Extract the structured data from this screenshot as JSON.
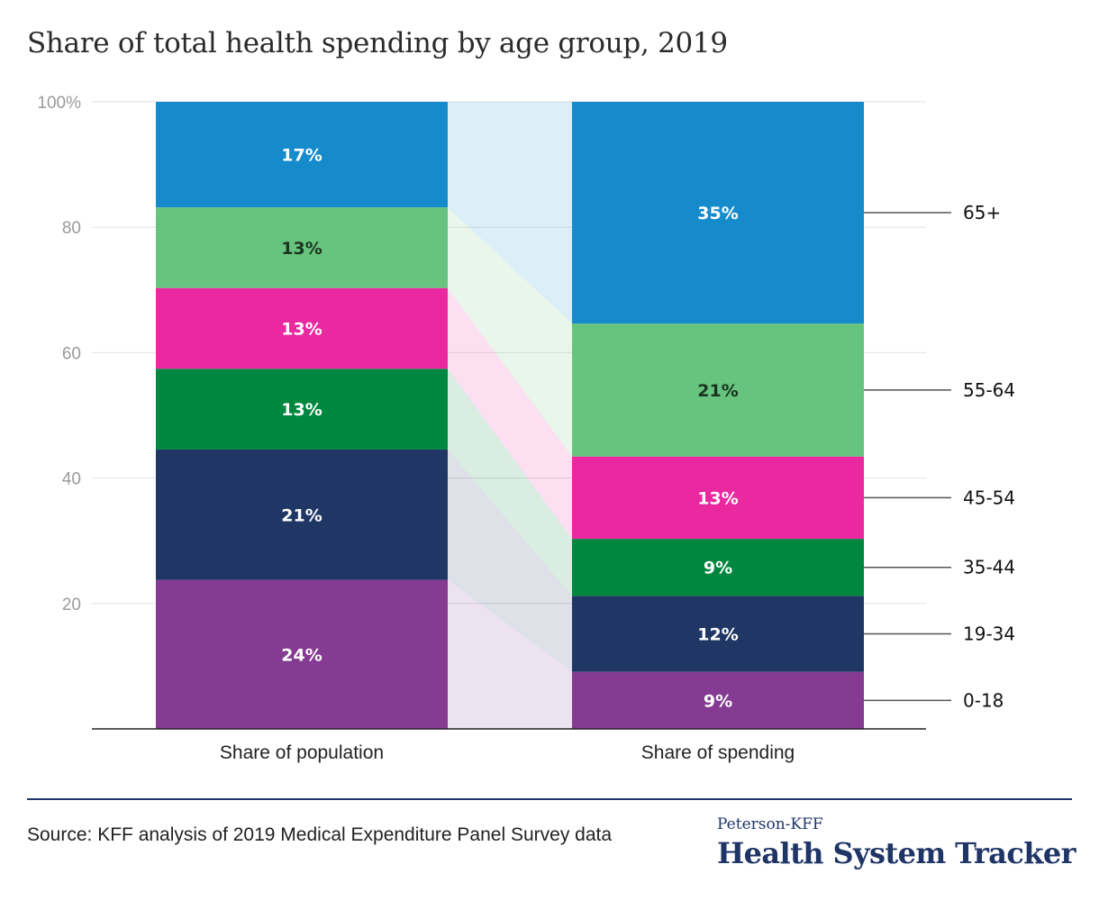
{
  "title": "Share of total health spending by age group, 2019",
  "chart_data": {
    "type": "bar",
    "stacked": true,
    "categories": [
      "Share of population",
      "Share of spending"
    ],
    "series": [
      {
        "name": "0-18",
        "values": [
          24,
          9
        ],
        "color": "#843b91",
        "labels": [
          "24%",
          "9%"
        ]
      },
      {
        "name": "19-34",
        "values": [
          21,
          12
        ],
        "color": "#203766",
        "labels": [
          "21%",
          "12%"
        ]
      },
      {
        "name": "35-44",
        "values": [
          13,
          9
        ],
        "color": "#00873f",
        "labels": [
          "13%",
          "9%"
        ]
      },
      {
        "name": "45-54",
        "values": [
          13,
          13
        ],
        "color": "#ea28a0",
        "labels": [
          "13%",
          "13%"
        ]
      },
      {
        "name": "55-64",
        "values": [
          13,
          21
        ],
        "color": "#66c47e",
        "labels": [
          "13%",
          "21%"
        ]
      },
      {
        "name": "65+",
        "values": [
          17,
          35
        ],
        "color": "#168bcb",
        "labels": [
          "17%",
          "35%"
        ]
      }
    ],
    "yticks": [
      "20",
      "40",
      "60",
      "80",
      "100%"
    ],
    "ytick_values": [
      20,
      40,
      60,
      80,
      100
    ],
    "ylim": [
      0,
      100
    ],
    "grid": true,
    "legend": "right"
  },
  "source": "Source: KFF analysis of 2019 Medical Expenditure Panel Survey data",
  "brand": {
    "top": "Peterson-KFF",
    "main": "Health System Tracker"
  }
}
